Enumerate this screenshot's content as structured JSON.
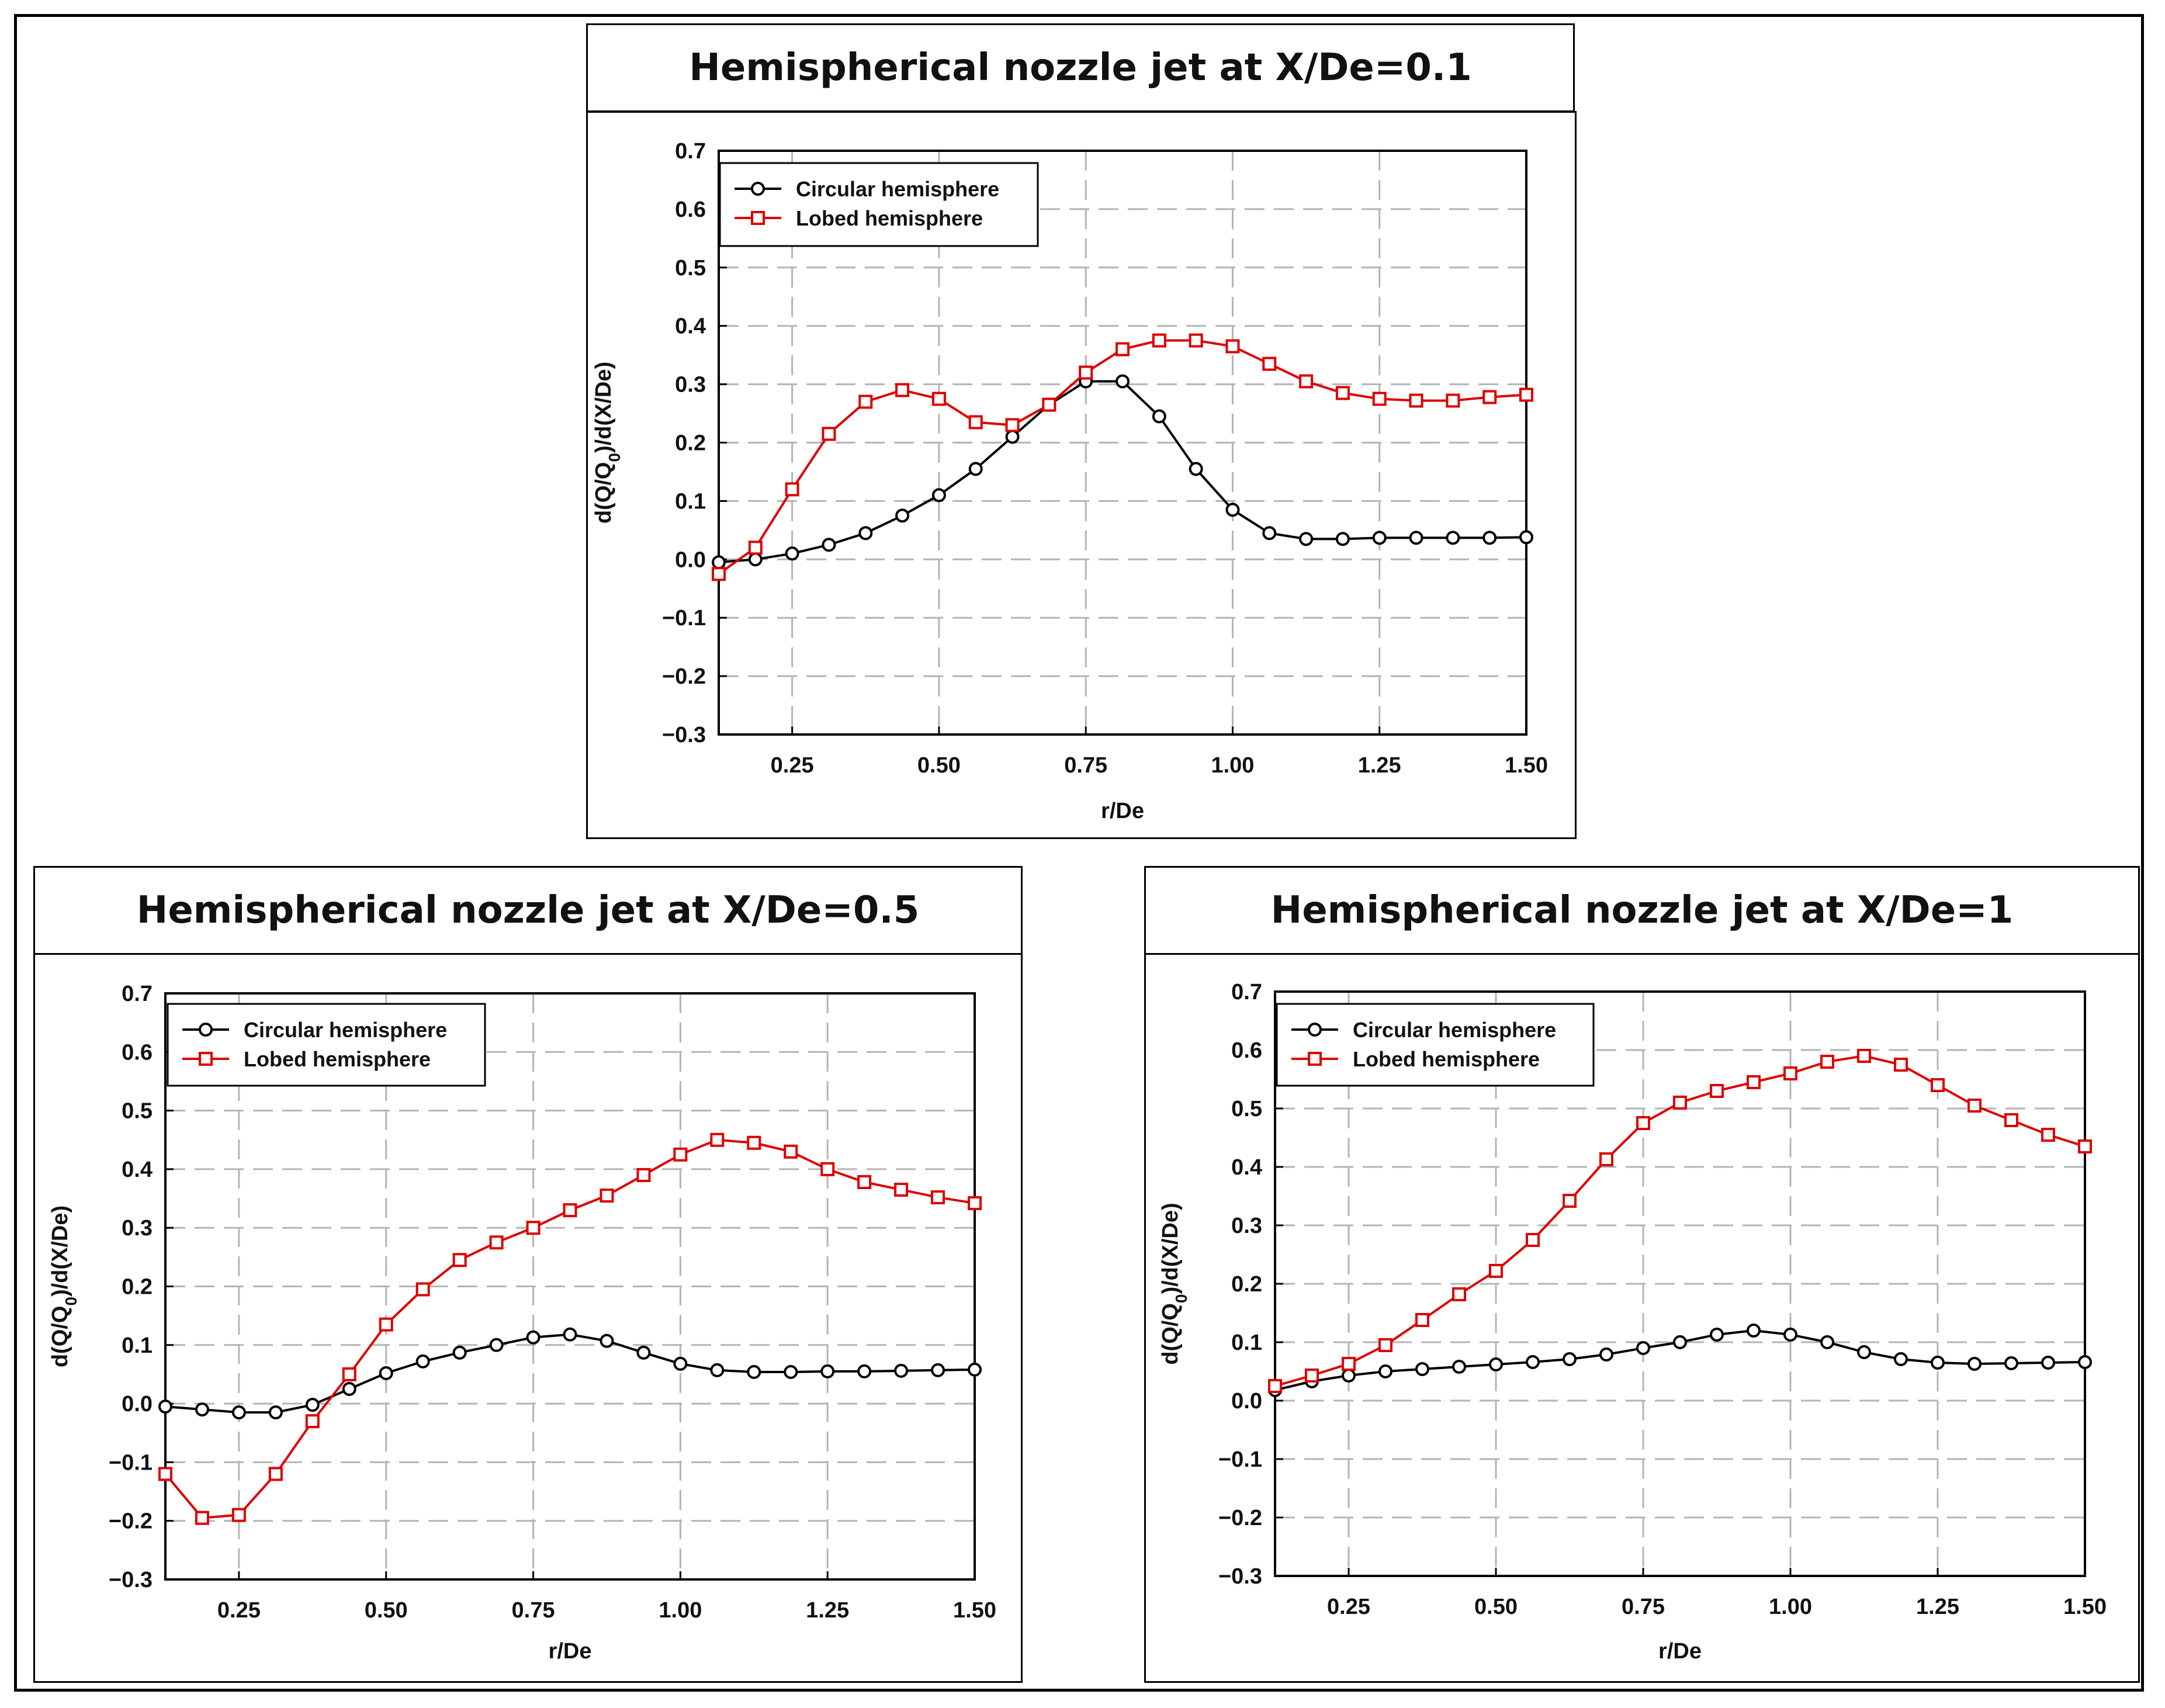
{
  "figure": {
    "background": "#ffffff"
  },
  "chart_data": [
    {
      "type": "line",
      "title": "Hemispherical nozzle jet at X/De=0.1",
      "xlabel": "r/De",
      "ylabel_main": "d(Q/Q",
      "ylabel_sub": "0",
      "ylabel_tail": ")/d(X/De)",
      "xlim": [
        0.125,
        1.5
      ],
      "ylim": [
        -0.3,
        0.7
      ],
      "xticks": [
        0.25,
        0.5,
        0.75,
        1.0,
        1.25,
        1.5
      ],
      "xtick_labels": [
        "0.25",
        "0.50",
        "0.75",
        "1.00",
        "1.25",
        "1.50"
      ],
      "yticks": [
        -0.3,
        -0.2,
        -0.1,
        0.0,
        0.1,
        0.2,
        0.3,
        0.4,
        0.5,
        0.6,
        0.7
      ],
      "ytick_labels": [
        "−0.3",
        "−0.2",
        "−0.1",
        "0.0",
        "0.1",
        "0.2",
        "0.3",
        "0.4",
        "0.5",
        "0.6",
        "0.7"
      ],
      "grid": true,
      "legend_position": "top-left",
      "x": [
        0.125,
        0.1875,
        0.25,
        0.3125,
        0.375,
        0.4375,
        0.5,
        0.5625,
        0.625,
        0.6875,
        0.75,
        0.8125,
        0.875,
        0.9375,
        1.0,
        1.0625,
        1.125,
        1.1875,
        1.25,
        1.3125,
        1.375,
        1.4375,
        1.5
      ],
      "series": [
        {
          "name": "Circular hemisphere",
          "color": "#000000",
          "marker": "circle",
          "values": [
            -0.005,
            0.0,
            0.01,
            0.025,
            0.045,
            0.075,
            0.11,
            0.155,
            0.21,
            0.265,
            0.305,
            0.305,
            0.245,
            0.155,
            0.085,
            0.045,
            0.035,
            0.035,
            0.037,
            0.037,
            0.037,
            0.037,
            0.038
          ]
        },
        {
          "name": "Lobed hemisphere",
          "color": "#dd0000",
          "marker": "square",
          "values": [
            -0.025,
            0.02,
            0.12,
            0.215,
            0.27,
            0.29,
            0.275,
            0.235,
            0.23,
            0.265,
            0.32,
            0.36,
            0.375,
            0.375,
            0.365,
            0.335,
            0.305,
            0.285,
            0.275,
            0.272,
            0.272,
            0.278,
            0.282
          ]
        }
      ]
    },
    {
      "type": "line",
      "title": "Hemispherical nozzle jet at X/De=0.5",
      "xlabel": "r/De",
      "ylabel_main": "d(Q/Q",
      "ylabel_sub": "0",
      "ylabel_tail": ")/d(X/De)",
      "xlim": [
        0.125,
        1.5
      ],
      "ylim": [
        -0.3,
        0.7
      ],
      "xticks": [
        0.25,
        0.5,
        0.75,
        1.0,
        1.25,
        1.5
      ],
      "xtick_labels": [
        "0.25",
        "0.50",
        "0.75",
        "1.00",
        "1.25",
        "1.50"
      ],
      "yticks": [
        -0.3,
        -0.2,
        -0.1,
        0.0,
        0.1,
        0.2,
        0.3,
        0.4,
        0.5,
        0.6,
        0.7
      ],
      "ytick_labels": [
        "−0.3",
        "−0.2",
        "−0.1",
        "0.0",
        "0.1",
        "0.2",
        "0.3",
        "0.4",
        "0.5",
        "0.6",
        "0.7"
      ],
      "grid": true,
      "legend_position": "top-left",
      "x": [
        0.125,
        0.1875,
        0.25,
        0.3125,
        0.375,
        0.4375,
        0.5,
        0.5625,
        0.625,
        0.6875,
        0.75,
        0.8125,
        0.875,
        0.9375,
        1.0,
        1.0625,
        1.125,
        1.1875,
        1.25,
        1.3125,
        1.375,
        1.4375,
        1.5
      ],
      "series": [
        {
          "name": "Circular hemisphere",
          "color": "#000000",
          "marker": "circle",
          "values": [
            -0.005,
            -0.01,
            -0.015,
            -0.015,
            -0.002,
            0.025,
            0.052,
            0.072,
            0.087,
            0.1,
            0.113,
            0.118,
            0.107,
            0.087,
            0.068,
            0.057,
            0.054,
            0.054,
            0.055,
            0.055,
            0.056,
            0.057,
            0.058
          ]
        },
        {
          "name": "Lobed hemisphere",
          "color": "#dd0000",
          "marker": "square",
          "values": [
            -0.12,
            -0.195,
            -0.19,
            -0.12,
            -0.03,
            0.05,
            0.135,
            0.195,
            0.245,
            0.275,
            0.3,
            0.33,
            0.355,
            0.39,
            0.425,
            0.45,
            0.445,
            0.43,
            0.4,
            0.378,
            0.365,
            0.352,
            0.342
          ]
        }
      ]
    },
    {
      "type": "line",
      "title": "Hemispherical nozzle jet at X/De=1",
      "xlabel": "r/De",
      "ylabel_main": "d(Q/Q",
      "ylabel_sub": "0",
      "ylabel_tail": ")/d(X/De)",
      "xlim": [
        0.125,
        1.5
      ],
      "ylim": [
        -0.3,
        0.7
      ],
      "xticks": [
        0.25,
        0.5,
        0.75,
        1.0,
        1.25,
        1.5
      ],
      "xtick_labels": [
        "0.25",
        "0.50",
        "0.75",
        "1.00",
        "1.25",
        "1.50"
      ],
      "yticks": [
        -0.3,
        -0.2,
        -0.1,
        0.0,
        0.1,
        0.2,
        0.3,
        0.4,
        0.5,
        0.6,
        0.7
      ],
      "ytick_labels": [
        "−0.3",
        "−0.2",
        "−0.1",
        "0.0",
        "0.1",
        "0.2",
        "0.3",
        "0.4",
        "0.5",
        "0.6",
        "0.7"
      ],
      "grid": true,
      "legend_position": "top-left",
      "x": [
        0.125,
        0.1875,
        0.25,
        0.3125,
        0.375,
        0.4375,
        0.5,
        0.5625,
        0.625,
        0.6875,
        0.75,
        0.8125,
        0.875,
        0.9375,
        1.0,
        1.0625,
        1.125,
        1.1875,
        1.25,
        1.3125,
        1.375,
        1.4375,
        1.5
      ],
      "series": [
        {
          "name": "Circular hemisphere",
          "color": "#000000",
          "marker": "circle",
          "values": [
            0.018,
            0.033,
            0.043,
            0.05,
            0.054,
            0.058,
            0.062,
            0.066,
            0.071,
            0.079,
            0.09,
            0.1,
            0.113,
            0.12,
            0.113,
            0.1,
            0.083,
            0.071,
            0.065,
            0.063,
            0.064,
            0.065,
            0.066
          ]
        },
        {
          "name": "Lobed hemisphere",
          "color": "#dd0000",
          "marker": "square",
          "values": [
            0.025,
            0.043,
            0.063,
            0.095,
            0.138,
            0.182,
            0.222,
            0.275,
            0.342,
            0.413,
            0.475,
            0.51,
            0.53,
            0.545,
            0.56,
            0.58,
            0.59,
            0.575,
            0.54,
            0.505,
            0.48,
            0.455,
            0.435
          ]
        }
      ]
    }
  ]
}
